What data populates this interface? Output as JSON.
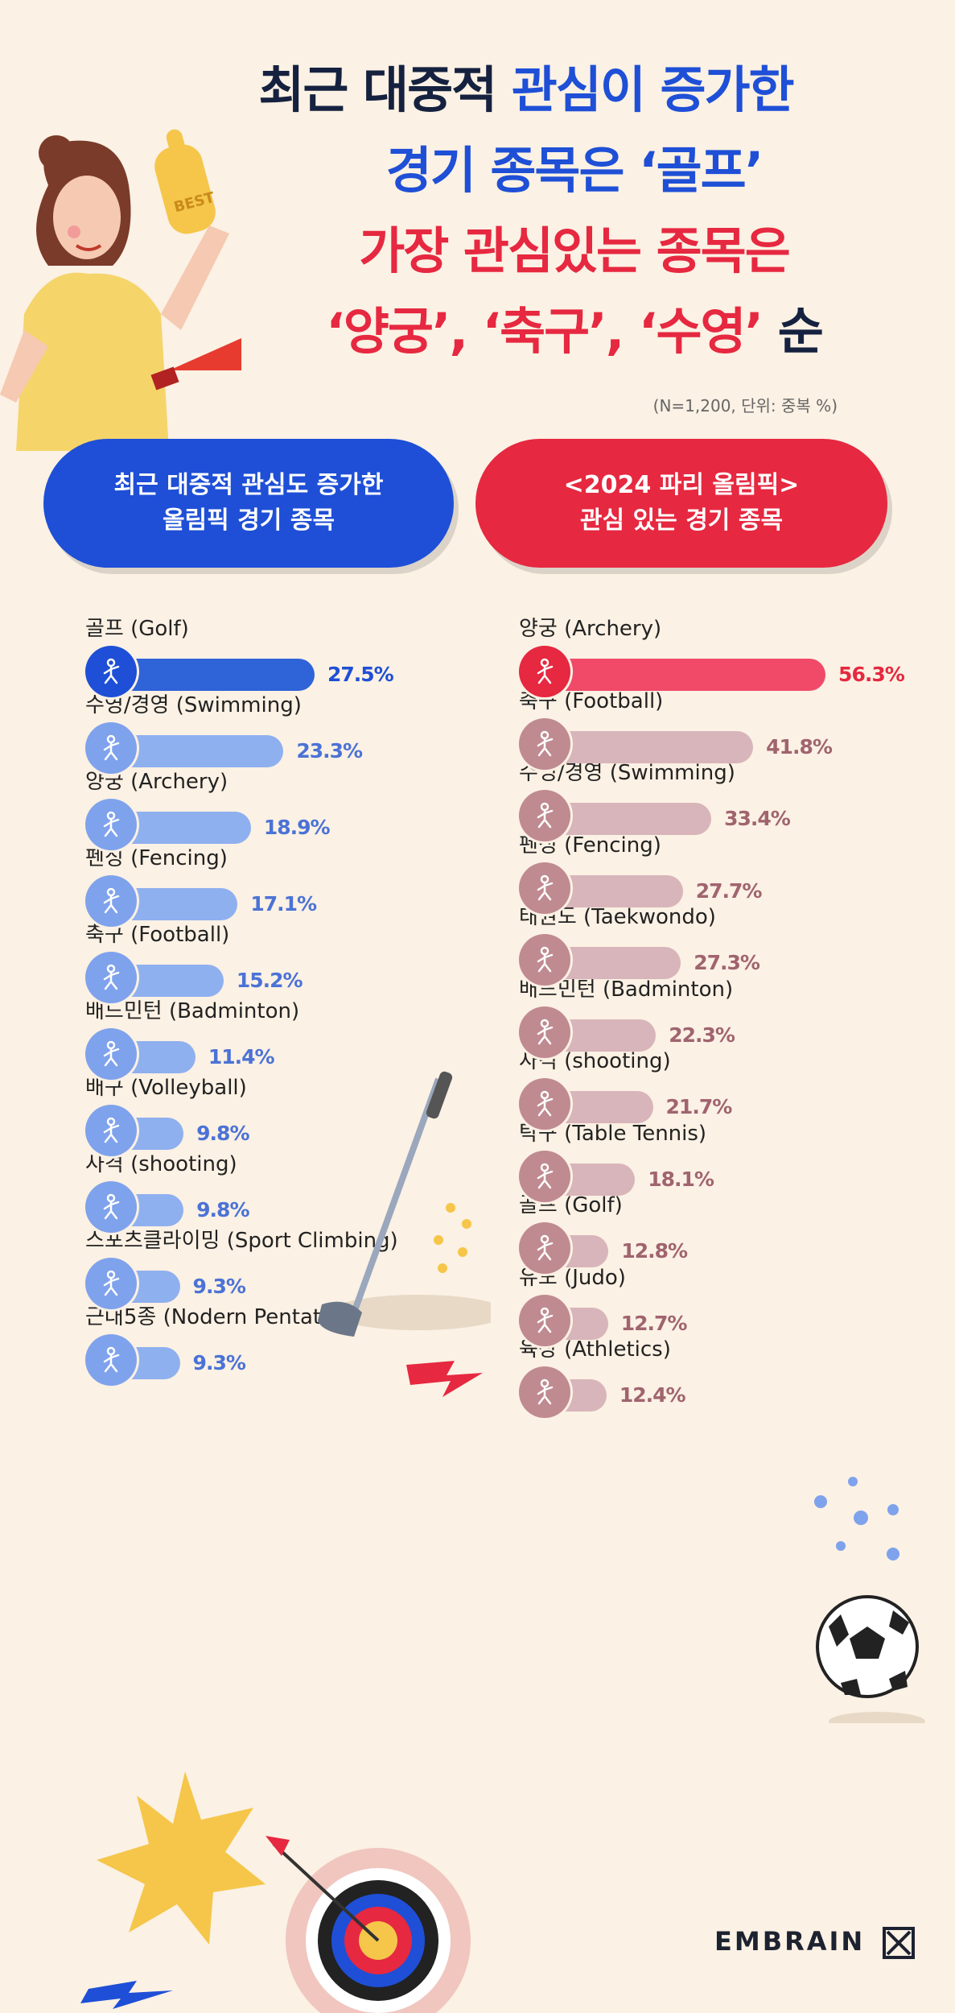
{
  "title": {
    "line1_a": "최근 대중적 ",
    "line1_b": "관심이 증가한",
    "line2": "경기 종목은 ‘골프’",
    "line3": "가장 관심있는 종목은",
    "line4_a": "‘양궁’, ‘축구’, ‘수영’",
    "line4_b": " 순"
  },
  "note": "(N=1,200, 단위: 중복 %)",
  "left_header": [
    "최근 대중적 관심도 증가한",
    "올림픽 경기 종목"
  ],
  "right_header": [
    "<2024 파리 올림픽>",
    "관심 있는 경기 종목"
  ],
  "brand": "EMBRAIN",
  "colors": {
    "left_top": "#2f63d8",
    "left_rest": "#8fb0ef",
    "left_text_top": "#1e4fd6",
    "left_text_rest": "#4b72d6",
    "right_top": "#f04a68",
    "right_rest": "#d8b5ba",
    "right_text_top": "#e62840",
    "right_text_rest": "#a0646f",
    "icon_left_top": "#1e4fd6",
    "icon_left_rest": "#7fa2ec",
    "icon_right_top": "#e62840",
    "icon_right_rest": "#c08a91"
  },
  "chart_data": [
    {
      "type": "bar",
      "title": "최근 대중적 관심도 증가한 올림픽 경기 종목",
      "categories": [
        "골프 (Golf)",
        "수영/경영 (Swimming)",
        "양궁 (Archery)",
        "펜싱 (Fencing)",
        "축구 (Football)",
        "배드민턴 (Badminton)",
        "배구 (Volleyball)",
        "사격 (shooting)",
        "스포츠클라이밍 (Sport Climbing)",
        "근대5종 (Nodern Pentathlon)"
      ],
      "values": [
        27.5,
        23.3,
        18.9,
        17.1,
        15.2,
        11.4,
        9.8,
        9.8,
        9.3,
        9.3
      ],
      "labels": [
        "27.5%",
        "23.3%",
        "18.9%",
        "17.1%",
        "15.2%",
        "11.4%",
        "9.8%",
        "9.8%",
        "9.3%",
        "9.3%"
      ],
      "icons": [
        "golf-icon",
        "swimming-icon",
        "archery-icon",
        "fencing-icon",
        "football-icon",
        "badminton-icon",
        "volleyball-icon",
        "shooting-icon",
        "climbing-icon",
        "pentathlon-icon"
      ],
      "unit": "%"
    },
    {
      "type": "bar",
      "title": "<2024 파리 올림픽> 관심 있는 경기 종목",
      "categories": [
        "양궁 (Archery)",
        "축구 (Football)",
        "수영/경영 (Swimming)",
        "펜싱 (Fencing)",
        "태권도 (Taekwondo)",
        "배드민턴 (Badminton)",
        "사격 (shooting)",
        "탁구 (Table Tennis)",
        "골프 (Golf)",
        "유도 (Judo)",
        "육상 (Athletics)"
      ],
      "values": [
        56.3,
        41.8,
        33.4,
        27.7,
        27.3,
        22.3,
        21.7,
        18.1,
        12.8,
        12.7,
        12.4
      ],
      "labels": [
        "56.3%",
        "41.8%",
        "33.4%",
        "27.7%",
        "27.3%",
        "22.3%",
        "21.7%",
        "18.1%",
        "12.8%",
        "12.7%",
        "12.4%"
      ],
      "icons": [
        "archery-icon",
        "football-icon",
        "swimming-icon",
        "fencing-icon",
        "taekwondo-icon",
        "badminton-icon",
        "shooting-icon",
        "table-tennis-icon",
        "golf-icon",
        "judo-icon",
        "athletics-icon"
      ],
      "unit": "%"
    }
  ]
}
